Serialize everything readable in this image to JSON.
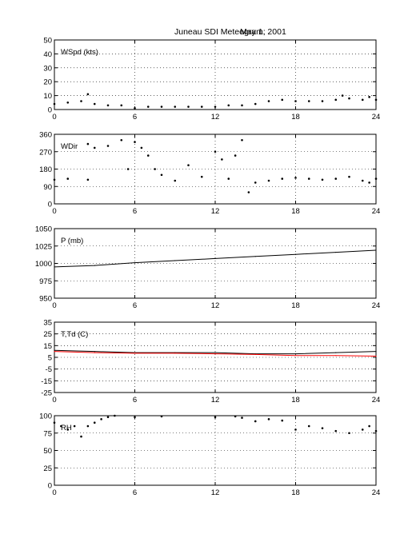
{
  "figure": {
    "title_station": "Juneau SDI Meteogram:",
    "title_date": "May   1, 2001"
  },
  "chart_data": [
    {
      "type": "scatter",
      "panel_label": "WSpd (kts)",
      "xlim": [
        0,
        24
      ],
      "xticks": [
        0,
        6,
        12,
        18,
        24
      ],
      "ylim": [
        0,
        50
      ],
      "yticks": [
        0,
        10,
        20,
        30,
        40,
        50
      ],
      "grid": true,
      "series": [
        {
          "color": "#000000",
          "x": [
            0,
            1,
            2,
            2.5,
            3,
            4,
            5,
            6,
            7,
            8,
            9,
            10,
            11,
            12,
            13,
            14,
            15,
            16,
            17,
            18,
            19,
            20,
            21,
            21.5,
            22,
            23,
            23.5,
            24
          ],
          "y": [
            4,
            5,
            6,
            11,
            4,
            3,
            3,
            1,
            2,
            2,
            2,
            2,
            2,
            2,
            3,
            3,
            4,
            6,
            7,
            6,
            6,
            6,
            7,
            10,
            8,
            7,
            9,
            7
          ]
        }
      ]
    },
    {
      "type": "scatter",
      "panel_label": "WDir",
      "xlim": [
        0,
        24
      ],
      "xticks": [
        0,
        6,
        12,
        18,
        24
      ],
      "ylim": [
        0,
        360
      ],
      "yticks": [
        0,
        90,
        180,
        270,
        360
      ],
      "grid": true,
      "series": [
        {
          "color": "#000000",
          "x": [
            0,
            1,
            2.5,
            2.5,
            3,
            4,
            5,
            5.5,
            6,
            6.5,
            7,
            7.5,
            8,
            9,
            10,
            11,
            12,
            12.5,
            13,
            13.5,
            14,
            14.5,
            15,
            16,
            17,
            18,
            19,
            20,
            21,
            22,
            23,
            23.5,
            24
          ],
          "y": [
            125,
            130,
            125,
            310,
            290,
            300,
            330,
            180,
            320,
            290,
            250,
            180,
            150,
            120,
            200,
            140,
            270,
            230,
            130,
            250,
            330,
            60,
            110,
            120,
            130,
            135,
            130,
            125,
            130,
            140,
            120,
            110,
            130
          ]
        }
      ]
    },
    {
      "type": "line",
      "panel_label": "P (mb)",
      "xlim": [
        0,
        24
      ],
      "xticks": [
        0,
        6,
        12,
        18,
        24
      ],
      "ylim": [
        950,
        1050
      ],
      "yticks": [
        950,
        975,
        1000,
        1025,
        1050
      ],
      "grid": true,
      "series": [
        {
          "color": "#000000",
          "x": [
            0,
            3,
            6,
            9,
            12,
            15,
            18,
            21,
            24
          ],
          "y": [
            995,
            997,
            1001,
            1004,
            1007,
            1010,
            1013,
            1016,
            1019
          ]
        }
      ]
    },
    {
      "type": "line",
      "panel_label": "T,Td (C)",
      "xlim": [
        0,
        24
      ],
      "xticks": [
        0,
        6,
        12,
        18,
        24
      ],
      "ylim": [
        -25,
        35
      ],
      "yticks": [
        -25,
        -15,
        -5,
        5,
        15,
        25,
        35
      ],
      "grid": true,
      "series": [
        {
          "color": "#000000",
          "x": [
            0,
            3,
            6,
            9,
            12,
            15,
            18,
            21,
            24
          ],
          "y": [
            11,
            10,
            9,
            9,
            9,
            8,
            8,
            9,
            10
          ]
        },
        {
          "color": "#ff0000",
          "x": [
            0,
            3,
            6,
            9,
            12,
            15,
            18,
            21,
            24
          ],
          "y": [
            10,
            9,
            8.5,
            8.5,
            8,
            7.5,
            6.5,
            6.5,
            6
          ]
        }
      ]
    },
    {
      "type": "scatter",
      "panel_label": "RH",
      "xlim": [
        0,
        24
      ],
      "xticks": [
        0,
        6,
        12,
        18,
        24
      ],
      "ylim": [
        0,
        100
      ],
      "yticks": [
        0,
        25,
        50,
        75,
        100
      ],
      "grid": true,
      "series": [
        {
          "color": "#000000",
          "x": [
            0,
            0.5,
            1,
            1.5,
            2,
            2.5,
            3,
            3.5,
            4,
            4.5,
            6,
            8,
            12,
            13.5,
            14,
            15,
            16,
            17,
            18,
            19,
            20,
            21,
            22,
            23,
            23.5,
            24
          ],
          "y": [
            90,
            85,
            80,
            85,
            70,
            85,
            90,
            95,
            98,
            100,
            98,
            99,
            98,
            99,
            97,
            92,
            95,
            93,
            80,
            85,
            82,
            78,
            75,
            80,
            85,
            78
          ]
        }
      ]
    }
  ]
}
